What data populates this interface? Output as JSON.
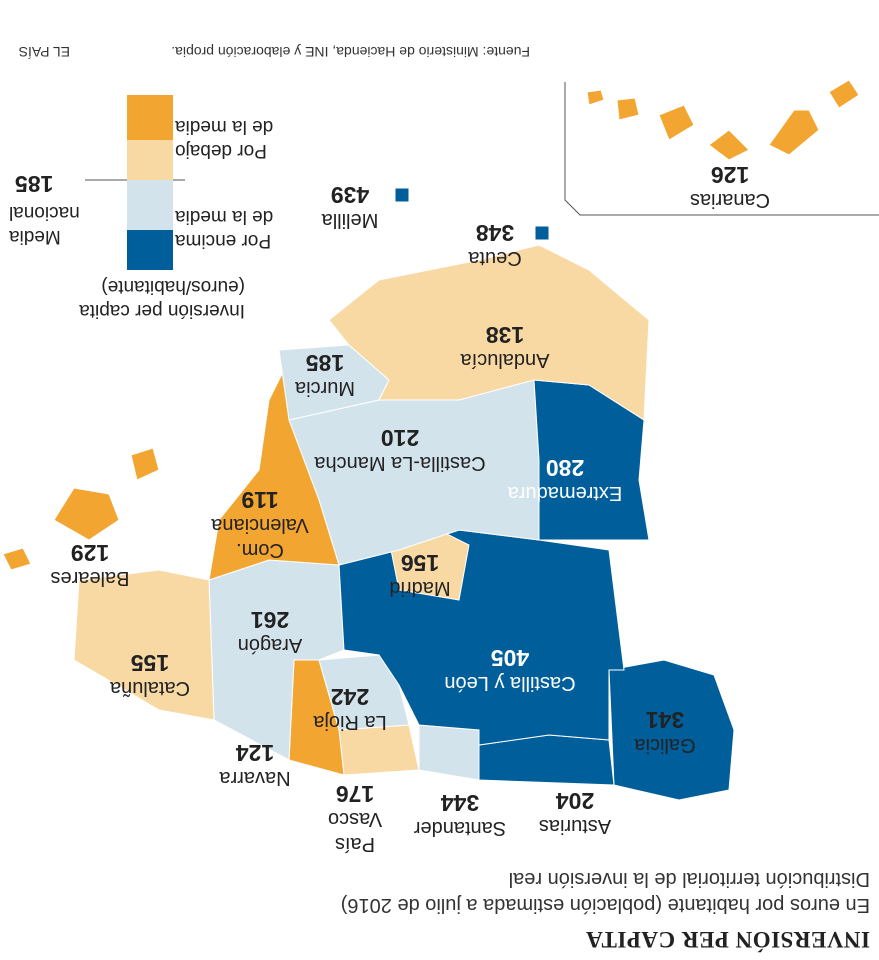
{
  "header": {
    "title": "INVERSIÓN PER CAPITA",
    "subtitle": "En euros por habitante (población estimada a julio de 2016)",
    "description": "Distribución territorial de la inversión real"
  },
  "legend": {
    "title": "Inversión per capita (euros/habitante)",
    "items": [
      {
        "color": "#005f9a"
      },
      {
        "color": "#d3e3ec"
      },
      {
        "color": "#f8d9a4"
      },
      {
        "color": "#f2a530"
      }
    ],
    "above_label": "Por encima de la media",
    "below_label": "Por debajo de la media",
    "average_label": "Media nacional",
    "average_value": 185
  },
  "regions": [
    {
      "name": "Galicia",
      "value": 341,
      "color": "#005f9a"
    },
    {
      "name": "Asturias",
      "value": 204,
      "color": "#005f9a"
    },
    {
      "name": "Santander",
      "value": 344,
      "color": "#d3e3ec"
    },
    {
      "name": "País Vasco",
      "value": 176,
      "color": "#f8d9a4"
    },
    {
      "name": "Navarra",
      "value": 124,
      "color": "#f2a530"
    },
    {
      "name": "La Rioja",
      "value": 242,
      "color": "#d3e3ec"
    },
    {
      "name": "Aragón",
      "value": 261,
      "color": "#d3e3ec"
    },
    {
      "name": "Cataluña",
      "value": 155,
      "color": "#f8d9a4"
    },
    {
      "name": "Castilla y León",
      "value": 405,
      "color": "#005f9a"
    },
    {
      "name": "Madrid",
      "value": 156,
      "color": "#f8d9a4"
    },
    {
      "name": "Castilla-La Mancha",
      "value": 210,
      "color": "#d3e3ec"
    },
    {
      "name": "Extremadura",
      "value": 280,
      "color": "#005f9a"
    },
    {
      "name": "Com. Valenciana",
      "value": 119,
      "color": "#f2a530"
    },
    {
      "name": "Murcia",
      "value": 185,
      "color": "#d3e3ec"
    },
    {
      "name": "Andalucía",
      "value": 138,
      "color": "#f8d9a4"
    },
    {
      "name": "Baleares",
      "value": 129,
      "color": "#f2a530"
    },
    {
      "name": "Ceuta",
      "value": 348,
      "color": "#005f9a"
    },
    {
      "name": "Melilla",
      "value": 439,
      "color": "#005f9a"
    },
    {
      "name": "Canarias",
      "value": 126,
      "color": "#f2a530"
    }
  ],
  "footer": {
    "source": "Fuente: Ministerio de Hacienda, INE y elaboración propia.",
    "brand": "EL PAÍS"
  }
}
